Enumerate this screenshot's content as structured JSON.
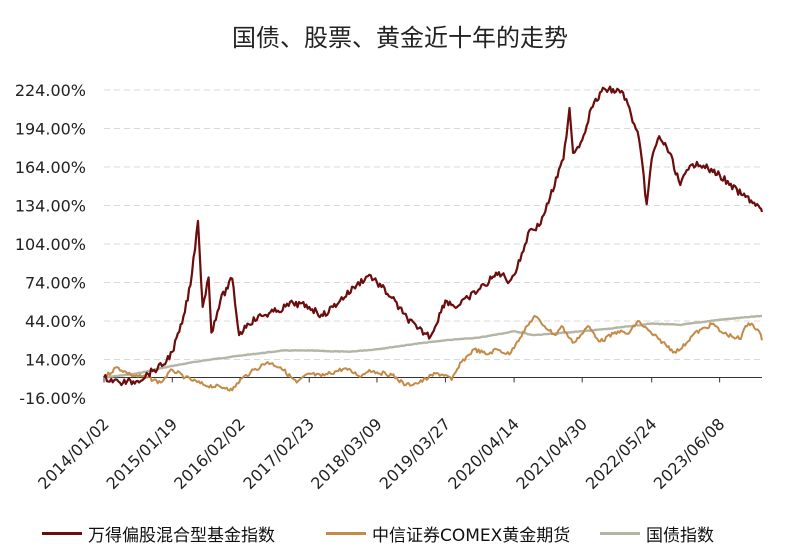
{
  "chart_data": {
    "type": "line",
    "title": "国债、股票、黄金近十年的走势",
    "xlabel": "",
    "ylabel": "",
    "ylim": [
      -16,
      224
    ],
    "yticks": [
      -16,
      14,
      44,
      74,
      104,
      134,
      164,
      194,
      224
    ],
    "ytick_labels": [
      "-16.00%",
      "14.00%",
      "44.00%",
      "74.00%",
      "104.00%",
      "134.00%",
      "164.00%",
      "194.00%",
      "224.00%"
    ],
    "x_dates": [
      "2014/01/02",
      "2015/01/19",
      "2016/02/02",
      "2017/02/23",
      "2018/03/09",
      "2019/03/27",
      "2020/04/14",
      "2021/04/30",
      "2022/05/24",
      "2023/06/08"
    ],
    "xlim": [
      "2014/01/02",
      "2024/01/31"
    ],
    "grid": "horizontal",
    "legend_position": "bottom",
    "series": [
      {
        "name": "万得偏股混合型基金指数",
        "color": "#6b0d0d",
        "points": [
          [
            "2014/01/02",
            0
          ],
          [
            "2014/04/01",
            -4
          ],
          [
            "2014/07/01",
            -3
          ],
          [
            "2014/10/01",
            5
          ],
          [
            "2014/12/01",
            10
          ],
          [
            "2015/01/19",
            20
          ],
          [
            "2015/03/15",
            42
          ],
          [
            "2015/05/01",
            72
          ],
          [
            "2015/06/12",
            122
          ],
          [
            "2015/07/08",
            55
          ],
          [
            "2015/08/10",
            78
          ],
          [
            "2015/08/26",
            35
          ],
          [
            "2015/10/15",
            60
          ],
          [
            "2015/12/20",
            77
          ],
          [
            "2016/01/28",
            33
          ],
          [
            "2016/03/15",
            42
          ],
          [
            "2016/06/01",
            48
          ],
          [
            "2016/09/01",
            52
          ],
          [
            "2016/11/25",
            58
          ],
          [
            "2017/02/23",
            55
          ],
          [
            "2017/05/10",
            48
          ],
          [
            "2017/08/15",
            60
          ],
          [
            "2017/11/15",
            72
          ],
          [
            "2018/01/25",
            80
          ],
          [
            "2018/03/09",
            74
          ],
          [
            "2018/06/01",
            62
          ],
          [
            "2018/08/01",
            50
          ],
          [
            "2018/10/20",
            38
          ],
          [
            "2019/01/03",
            32
          ],
          [
            "2019/03/27",
            60
          ],
          [
            "2019/06/01",
            55
          ],
          [
            "2019/08/01",
            62
          ],
          [
            "2019/11/01",
            72
          ],
          [
            "2020/01/20",
            82
          ],
          [
            "2020/03/20",
            75
          ],
          [
            "2020/05/01",
            85
          ],
          [
            "2020/07/10",
            115
          ],
          [
            "2020/09/01",
            118
          ],
          [
            "2020/11/01",
            140
          ],
          [
            "2021/01/15",
            170
          ],
          [
            "2021/02/18",
            210
          ],
          [
            "2021/03/10",
            175
          ],
          [
            "2021/04/30",
            185
          ],
          [
            "2021/06/20",
            210
          ],
          [
            "2021/09/01",
            225
          ],
          [
            "2021/12/15",
            222
          ],
          [
            "2022/01/28",
            205
          ],
          [
            "2022/03/15",
            185
          ],
          [
            "2022/04/26",
            135
          ],
          [
            "2022/05/24",
            170
          ],
          [
            "2022/07/05",
            188
          ],
          [
            "2022/09/01",
            175
          ],
          [
            "2022/10/31",
            150
          ],
          [
            "2022/12/15",
            162
          ],
          [
            "2023/02/01",
            168
          ],
          [
            "2023/03/10",
            165
          ],
          [
            "2023/05/01",
            160
          ],
          [
            "2023/06/08",
            158
          ],
          [
            "2023/08/01",
            150
          ],
          [
            "2023/10/15",
            142
          ],
          [
            "2023/12/01",
            138
          ],
          [
            "2024/01/20",
            132
          ],
          [
            "2024/01/31",
            129
          ]
        ]
      },
      {
        "name": "中信证券COMEX黄金期货",
        "color": "#c48a48",
        "points": [
          [
            "2014/01/02",
            0
          ],
          [
            "2014/03/15",
            8
          ],
          [
            "2014/06/01",
            2
          ],
          [
            "2014/09/01",
            0
          ],
          [
            "2014/11/15",
            -4
          ],
          [
            "2015/01/19",
            6
          ],
          [
            "2015/04/01",
            0
          ],
          [
            "2015/07/20",
            -6
          ],
          [
            "2015/11/20",
            -8
          ],
          [
            "2015/12/20",
            -10
          ],
          [
            "2016/02/02",
            -2
          ],
          [
            "2016/04/01",
            4
          ],
          [
            "2016/07/06",
            12
          ],
          [
            "2016/09/15",
            8
          ],
          [
            "2016/12/15",
            -4
          ],
          [
            "2017/02/23",
            3
          ],
          [
            "2017/05/01",
            1
          ],
          [
            "2017/09/08",
            7
          ],
          [
            "2017/12/12",
            1
          ],
          [
            "2018/01/25",
            6
          ],
          [
            "2018/03/09",
            4
          ],
          [
            "2018/06/01",
            2
          ],
          [
            "2018/08/16",
            -6
          ],
          [
            "2018/11/01",
            -4
          ],
          [
            "2019/01/31",
            3
          ],
          [
            "2019/03/27",
            2
          ],
          [
            "2019/05/01",
            -2
          ],
          [
            "2019/06/25",
            12
          ],
          [
            "2019/09/04",
            22
          ],
          [
            "2019/11/15",
            18
          ],
          [
            "2020/01/08",
            22
          ],
          [
            "2020/03/19",
            18
          ],
          [
            "2020/05/01",
            28
          ],
          [
            "2020/08/06",
            48
          ],
          [
            "2020/10/01",
            40
          ],
          [
            "2020/11/30",
            33
          ],
          [
            "2021/01/05",
            40
          ],
          [
            "2021/03/08",
            27
          ],
          [
            "2021/04/30",
            34
          ],
          [
            "2021/06/01",
            40
          ],
          [
            "2021/08/09",
            28
          ],
          [
            "2021/11/16",
            36
          ],
          [
            "2022/01/15",
            34
          ],
          [
            "2022/03/08",
            44
          ],
          [
            "2022/05/24",
            34
          ],
          [
            "2022/07/01",
            30
          ],
          [
            "2022/09/28",
            20
          ],
          [
            "2022/11/01",
            22
          ],
          [
            "2023/01/15",
            34
          ],
          [
            "2023/05/04",
            42
          ],
          [
            "2023/06/08",
            36
          ],
          [
            "2023/08/15",
            32
          ],
          [
            "2023/10/05",
            30
          ],
          [
            "2023/10/30",
            40
          ],
          [
            "2023/12/04",
            42
          ],
          [
            "2024/01/15",
            36
          ],
          [
            "2024/01/31",
            29
          ]
        ]
      },
      {
        "name": "国债指数",
        "color": "#b5b5a5",
        "points": [
          [
            "2014/01/02",
            0
          ],
          [
            "2014/07/01",
            3
          ],
          [
            "2015/01/19",
            9
          ],
          [
            "2015/07/01",
            13
          ],
          [
            "2016/02/02",
            17
          ],
          [
            "2016/10/01",
            21
          ],
          [
            "2017/02/23",
            21
          ],
          [
            "2017/10/01",
            20
          ],
          [
            "2018/03/09",
            22
          ],
          [
            "2018/10/01",
            26
          ],
          [
            "2019/03/27",
            29
          ],
          [
            "2019/10/01",
            31
          ],
          [
            "2020/04/14",
            36
          ],
          [
            "2020/08/01",
            33
          ],
          [
            "2021/04/30",
            36
          ],
          [
            "2021/10/01",
            38
          ],
          [
            "2022/05/24",
            42
          ],
          [
            "2022/11/01",
            41
          ],
          [
            "2023/06/08",
            45
          ],
          [
            "2024/01/31",
            48
          ]
        ]
      }
    ]
  }
}
